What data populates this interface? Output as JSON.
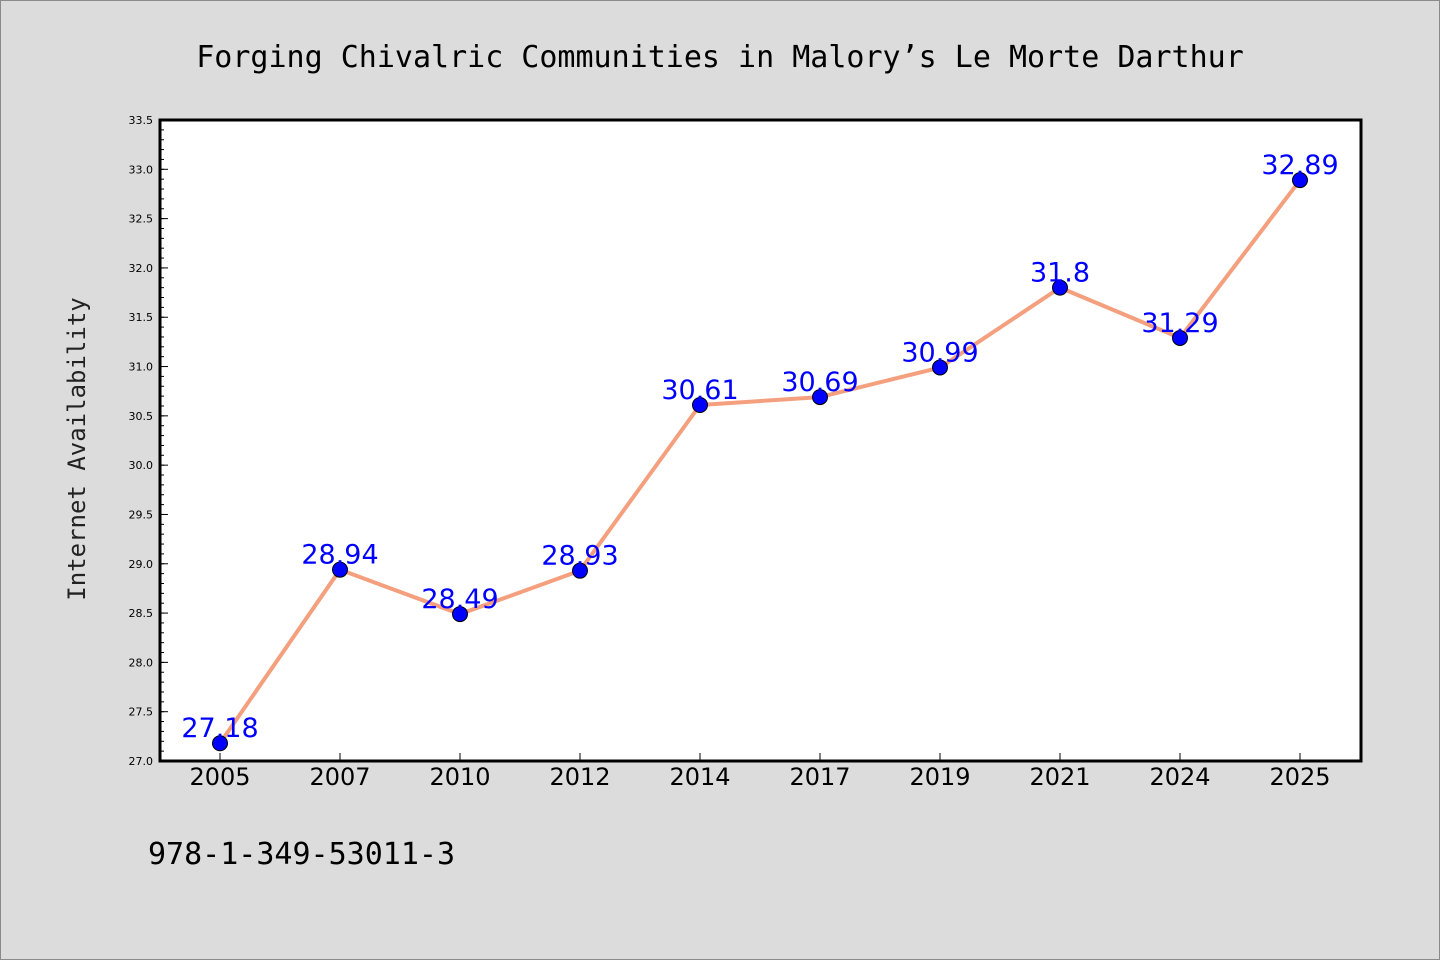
{
  "chart_data": {
    "type": "line",
    "title": "Forging Chivalric Communities in Malory’s Le Morte Darthur",
    "xlabel": "",
    "ylabel": "Internet Availability",
    "categories": [
      "2005",
      "2007",
      "2010",
      "2012",
      "2014",
      "2017",
      "2019",
      "2021",
      "2024",
      "2025"
    ],
    "series": [
      {
        "values": [
          27.18,
          28.94,
          28.49,
          28.93,
          30.61,
          30.69,
          30.99,
          31.8,
          31.29,
          32.89
        ],
        "labels": [
          "27.18",
          "28.94",
          "28.49",
          "28.93",
          "30.61",
          "30.69",
          "30.99",
          "31.8",
          "31.29",
          "32.89"
        ],
        "line_color": "#f4a07e",
        "marker_color": "#0000ff"
      }
    ],
    "ylim": [
      27.0,
      33.5
    ],
    "yticks": [
      "27.0",
      "27.5",
      "28.0",
      "28.5",
      "29.0",
      "29.5",
      "30.0",
      "30.5",
      "31.0",
      "31.5",
      "32.0",
      "32.5",
      "33.0",
      "33.5"
    ],
    "grid": false,
    "legend": "none"
  },
  "footer": {
    "isbn": "978-1-349-53011-3"
  },
  "colors": {
    "background": "#dcdcdc",
    "plot_area": "#ffffff",
    "line": "#f4a07e",
    "marker": "#0000ff",
    "label": "#0000ff"
  }
}
